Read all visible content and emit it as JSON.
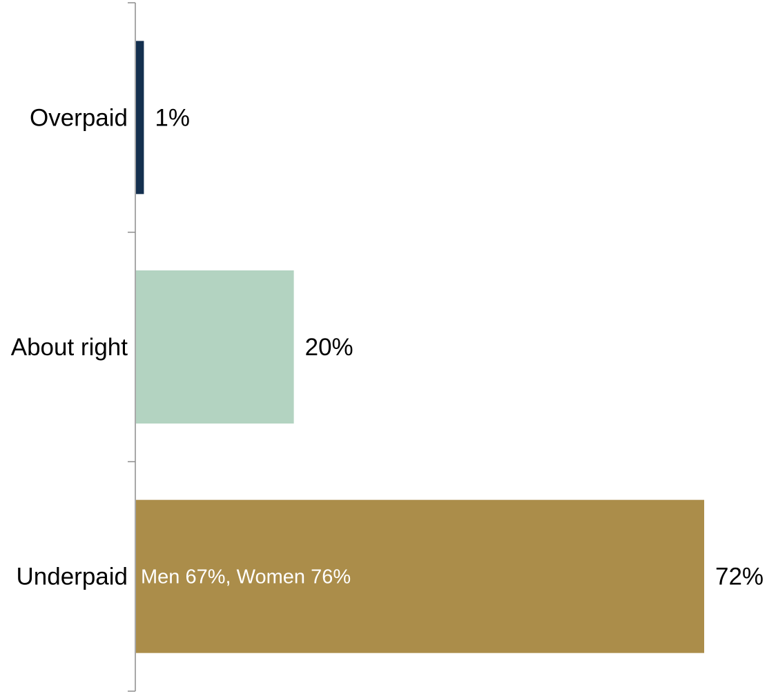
{
  "chart_data": {
    "type": "bar",
    "orientation": "horizontal",
    "categories": [
      "Overpaid",
      "About right",
      "Underpaid"
    ],
    "values": [
      1,
      20,
      72
    ],
    "value_labels": [
      "1%",
      "20%",
      "72%"
    ],
    "annotations": [
      {
        "category": "Underpaid",
        "text": "Men 67%, Women 76%"
      }
    ],
    "colors": [
      "#14304f",
      "#b3d3c1",
      "#ab8d4a"
    ],
    "annotation_color": "#ffffff",
    "axis_color": "#8c8c8c",
    "text_color": "#000000",
    "xlim": [
      0,
      72
    ],
    "grid": false,
    "legend": "none",
    "title": "",
    "xlabel": "",
    "ylabel": ""
  }
}
